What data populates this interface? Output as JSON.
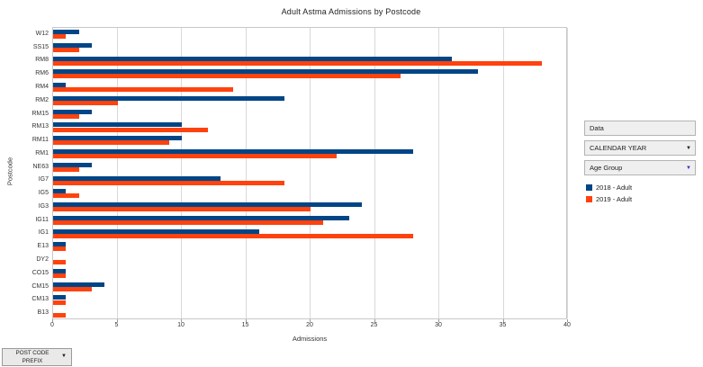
{
  "title": "Adult Astma Admissions by Postcode",
  "chart_data": {
    "type": "bar",
    "orientation": "horizontal",
    "title": "Adult Astma Admissions by Postcode",
    "xlabel": "Admissions",
    "ylabel": "Postcode",
    "xlim": [
      0,
      40
    ],
    "xticks": [
      0,
      5,
      10,
      15,
      20,
      25,
      30,
      35,
      40
    ],
    "grid": true,
    "legend_position": "right",
    "categories": [
      "W12",
      "SS15",
      "RM8",
      "RM6",
      "RM4",
      "RM2",
      "RM15",
      "RM13",
      "RM11",
      "RM1",
      "NE63",
      "IG7",
      "IG5",
      "IG3",
      "IG11",
      "IG1",
      "E13",
      "DY2",
      "CO15",
      "CM15",
      "CM13",
      "B13"
    ],
    "series": [
      {
        "name": "2018 - Adult",
        "color": "#004586",
        "values": [
          2,
          3,
          31,
          33,
          1,
          18,
          3,
          10,
          10,
          28,
          3,
          13,
          1,
          24,
          23,
          16,
          1,
          0,
          1,
          4,
          1,
          0
        ]
      },
      {
        "name": "2019 - Adult",
        "color": "#ff420e",
        "values": [
          1,
          2,
          38,
          27,
          14,
          5,
          2,
          12,
          9,
          22,
          2,
          18,
          2,
          20,
          21,
          28,
          1,
          1,
          1,
          3,
          1,
          1
        ]
      }
    ]
  },
  "panel": {
    "data_label": "Data",
    "calendar_year_label": "CALENDAR YEAR",
    "age_group_label": "Age Group",
    "arrow_glyph": "▼",
    "age_group_arrow_color": "#3333cc",
    "legend": [
      {
        "label": "2018 - Adult",
        "color": "#004586"
      },
      {
        "label": "2019 - Adult",
        "color": "#ff420e"
      }
    ]
  },
  "footer": {
    "postcode_prefix_line1": "POST CODE",
    "postcode_prefix_line2": "PREFIX",
    "arrow_glyph": "▼"
  }
}
